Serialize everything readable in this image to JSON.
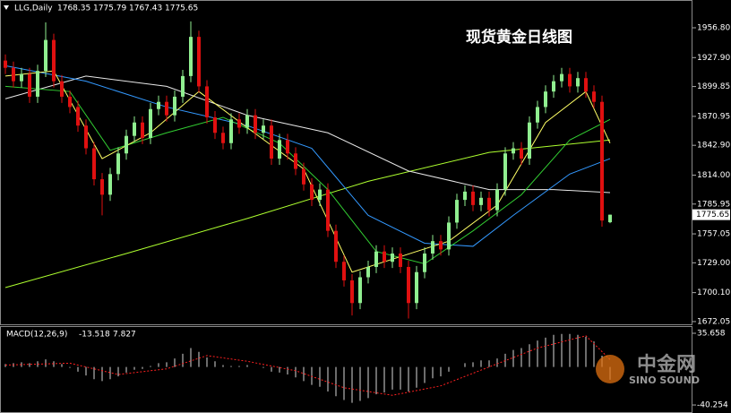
{
  "chart_data": [
    {
      "type": "candlestick",
      "title": "现货黄金日线图",
      "title_color": "#ff2020",
      "symbol": "LLG,Daily",
      "ylim": [
        1669.4,
        1973.3
      ],
      "yticks": [
        {
          "value": 1956.8,
          "label": "1956.80"
        },
        {
          "value": 1927.9,
          "label": "1927.90"
        },
        1899.85,
        1870.95,
        {
          "value": 1842.9,
          "label": "1842.90"
        },
        {
          "value": 1814,
          "label": "1814.00"
        },
        1785.95,
        1757.05,
        {
          "value": 1729,
          "label": "1729.00"
        },
        {
          "value": 1700.1,
          "label": "1700.10"
        },
        1672.05
      ],
      "up_color": "#90ee90",
      "down_color": "#e01010",
      "open": [
        1925,
        1918,
        1905,
        1912,
        1890,
        1915,
        1945,
        1905,
        1890,
        1880,
        1862,
        1840,
        1810,
        1795,
        1815,
        1835,
        1852,
        1865,
        1850,
        1878,
        1885,
        1872,
        1890,
        1910,
        1948,
        1900,
        1870,
        1855,
        1845,
        1868,
        1860,
        1872,
        1855,
        1862,
        1830,
        1848,
        1835,
        1820,
        1805,
        1790,
        1800,
        1760,
        1730,
        1712,
        1690,
        1715,
        1725,
        1740,
        1730,
        1738,
        1725,
        1690,
        1720,
        1738,
        1750,
        1742,
        1768,
        1790,
        1798,
        1785,
        1792,
        1780,
        1800,
        1835,
        1840,
        1830,
        1865,
        1880,
        1895,
        1905,
        1912,
        1900,
        1908,
        1895,
        1885,
        1768.35
      ],
      "high": [
        1931,
        1924,
        1918,
        1918,
        1921,
        1962,
        1951,
        1911,
        1896,
        1886,
        1868,
        1846,
        1816,
        1821,
        1841,
        1858,
        1871,
        1871,
        1884,
        1891,
        1891,
        1896,
        1916,
        1963,
        1954,
        1906,
        1876,
        1861,
        1874,
        1874,
        1878,
        1878,
        1868,
        1868,
        1854,
        1854,
        1841,
        1826,
        1811,
        1806,
        1806,
        1766,
        1736,
        1718,
        1721,
        1731,
        1746,
        1746,
        1744,
        1744,
        1731,
        1726,
        1744,
        1756,
        1756,
        1774,
        1796,
        1804,
        1804,
        1798,
        1798,
        1806,
        1841,
        1846,
        1846,
        1871,
        1886,
        1901,
        1911,
        1918,
        1918,
        1914,
        1914,
        1901,
        1891,
        1775.79
      ],
      "low": [
        1912,
        1899,
        1899,
        1884,
        1884,
        1909,
        1899,
        1884,
        1874,
        1856,
        1834,
        1804,
        1775,
        1789,
        1809,
        1829,
        1846,
        1844,
        1844,
        1872,
        1866,
        1866,
        1884,
        1904,
        1894,
        1864,
        1849,
        1839,
        1839,
        1854,
        1854,
        1849,
        1849,
        1824,
        1824,
        1829,
        1814,
        1799,
        1784,
        1784,
        1754,
        1724,
        1706,
        1678,
        1684,
        1709,
        1719,
        1724,
        1724,
        1719,
        1675,
        1684,
        1714,
        1732,
        1736,
        1736,
        1762,
        1784,
        1779,
        1779,
        1774,
        1774,
        1794,
        1829,
        1824,
        1824,
        1859,
        1874,
        1889,
        1899,
        1894,
        1894,
        1889,
        1879,
        1764,
        1767.43
      ],
      "close": [
        1918,
        1905,
        1912,
        1890,
        1915,
        1945,
        1905,
        1890,
        1880,
        1862,
        1840,
        1810,
        1795,
        1815,
        1835,
        1852,
        1865,
        1850,
        1878,
        1885,
        1872,
        1890,
        1910,
        1948,
        1900,
        1870,
        1855,
        1845,
        1868,
        1860,
        1872,
        1855,
        1862,
        1830,
        1848,
        1835,
        1820,
        1805,
        1790,
        1800,
        1760,
        1730,
        1712,
        1690,
        1715,
        1725,
        1740,
        1730,
        1738,
        1725,
        1690,
        1720,
        1738,
        1750,
        1742,
        1768,
        1790,
        1798,
        1785,
        1792,
        1780,
        1800,
        1835,
        1840,
        1830,
        1865,
        1880,
        1895,
        1905,
        1912,
        1900,
        1908,
        1895,
        1885,
        1770,
        1775.65
      ],
      "moving_averages": [
        {
          "color": "#adff2f",
          "x": [
            0,
            15,
            30,
            45,
            60,
            75
          ],
          "values": [
            1705,
            1738,
            1772,
            1808,
            1836,
            1848
          ]
        },
        {
          "color": "#e8e8e8",
          "x": [
            0,
            10,
            20,
            30,
            40,
            50,
            60,
            68,
            75
          ],
          "values": [
            1888,
            1910,
            1900,
            1872,
            1855,
            1818,
            1800,
            1800,
            1797
          ]
        },
        {
          "color": "#3399ff",
          "x": [
            0,
            10,
            20,
            30,
            38,
            45,
            52,
            58,
            63,
            70,
            75
          ],
          "values": [
            1920,
            1905,
            1880,
            1862,
            1840,
            1775,
            1748,
            1745,
            1775,
            1815,
            1830
          ]
        },
        {
          "color": "#32cd32",
          "x": [
            0,
            8,
            13,
            20,
            27,
            34,
            40,
            46,
            52,
            58,
            64,
            70,
            75
          ],
          "values": [
            1900,
            1895,
            1838,
            1855,
            1870,
            1845,
            1800,
            1740,
            1728,
            1760,
            1795,
            1848,
            1868
          ]
        },
        {
          "color": "#ffff66",
          "x": [
            0,
            6,
            12,
            18,
            24,
            30,
            37,
            43,
            49,
            55,
            61,
            67,
            72,
            75
          ],
          "values": [
            1910,
            1915,
            1830,
            1855,
            1895,
            1860,
            1820,
            1720,
            1735,
            1750,
            1785,
            1865,
            1895,
            1845
          ]
        }
      ]
    },
    {
      "type": "macd",
      "label": "MACD(12,26,9)",
      "ylim": [
        -47.8,
        42.3
      ],
      "yticks": [
        35.658,
        -40.254
      ],
      "histogram_color": "#d8d8d8",
      "signal_color": "#ff2020",
      "histogram": [
        3,
        4,
        5,
        4,
        6,
        8,
        6,
        3,
        -1,
        -5,
        -9,
        -13,
        -15,
        -13,
        -10,
        -6,
        -3,
        -2,
        1,
        4,
        5,
        9,
        14,
        20,
        16,
        10,
        6,
        2,
        1,
        1,
        2,
        0,
        -1,
        -5,
        -6,
        -8,
        -11,
        -15,
        -19,
        -21,
        -26,
        -31,
        -35,
        -38,
        -36,
        -33,
        -29,
        -27,
        -24,
        -24,
        -26,
        -22,
        -17,
        -12,
        -10,
        -5,
        0,
        4,
        5,
        7,
        7,
        9,
        14,
        18,
        20,
        24,
        28,
        31,
        34,
        35,
        35,
        34,
        32,
        27,
        12,
        -13.518
      ],
      "signal": {
        "x": [
          0,
          8,
          14,
          20,
          25,
          30,
          36,
          42,
          48,
          54,
          60,
          66,
          72,
          75
        ],
        "values": [
          2,
          4,
          -8,
          -2,
          12,
          6,
          -4,
          -22,
          -30,
          -20,
          0,
          20,
          33,
          7.827
        ]
      }
    }
  ],
  "watermark": {
    "name": "中金网",
    "english": "SINO SOUND"
  }
}
